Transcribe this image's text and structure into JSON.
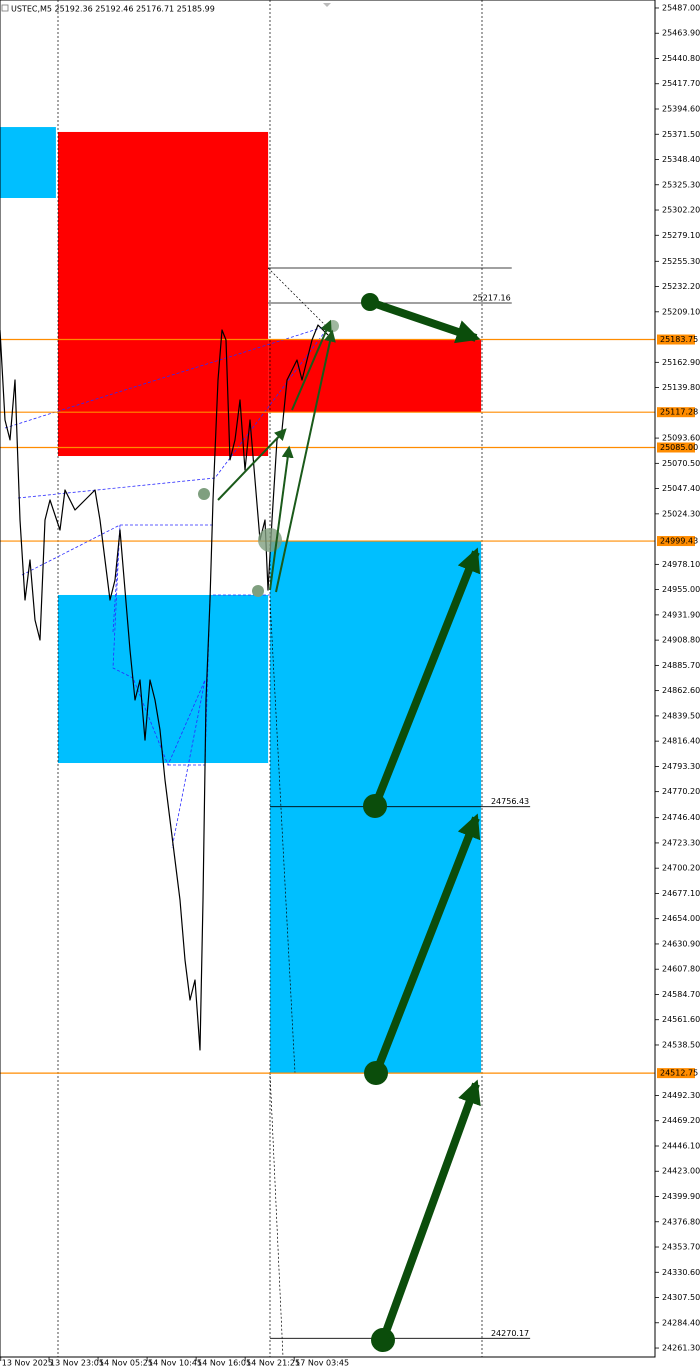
{
  "chart_data": {
    "type": "line",
    "title": "USTEC,M5  25192.36 25192.46 25176.71 25185.99",
    "color": "#000000",
    "x": [
      0,
      6.5,
      13.1,
      19.6,
      26.1,
      32.6,
      39.2,
      45.7,
      52.2,
      58.7,
      65.3,
      78.3,
      84.8,
      97.9,
      111.0,
      124.0,
      130.5,
      137.1,
      143.6,
      150.1,
      156.6,
      163.2,
      169.7,
      176.2,
      182.7,
      189.3,
      195.8,
      202.3,
      208.8,
      215.4,
      221.9,
      228.4,
      235.0,
      241.5,
      248.0,
      254.5,
      261.1,
      265.0,
      268.9,
      274.1,
      278.0,
      284.6,
      289.8,
      295.0,
      300.2,
      306.7,
      313.3,
      319.8,
      326.3,
      332.9,
      339.4,
      345.9,
      349.8,
      355.0,
      361.6,
      368.1,
      374.6,
      381.1,
      387.7,
      394.2,
      400.7,
      407.3,
      415.1,
      421.6,
      428.1
    ],
    "values": [
      25192.5,
      25110.1,
      25091.9,
      25146.7,
      25018.7,
      24945.5,
      24982.1,
      24927.2,
      24908.9,
      25018.7,
      25037.0,
      25009.5,
      25046.1,
      25027.8,
      25037.0,
      25046.1,
      25018.7,
      24982.1,
      24945.5,
      24963.8,
      25009.5,
      24954.6,
      24899.8,
      24854.0,
      24872.3,
      24817.4,
      24872.3,
      24854.0,
      24826.6,
      24780.9,
      24744.3,
      24707.7,
      24671.1,
      24616.2,
      24579.6,
      24597.9,
      24533.9,
      24671.1,
      24854.0,
      24945.5,
      25037.0,
      25146.7,
      25192.5,
      25183.3,
      25073.6,
      25091.9,
      25128.4,
      25064.4,
      25110.1,
      25055.3,
      25000.4,
      25018.7,
      24954.6,
      25018.7,
      25091.9,
      25101.0,
      25146.7,
      25155.9,
      25165.0,
      25146.7,
      25165.0,
      25183.3,
      25197.0,
      25192.5,
      25187.9
    ],
    "xlim": [
      0,
      855
    ],
    "xticks": [
      {
        "value": 1,
        "label": "13 Nov 2025"
      },
      {
        "value": 64,
        "label": "13 Nov 23:05"
      },
      {
        "value": 128,
        "label": "14 Nov 05:25"
      },
      {
        "value": 192,
        "label": "14 Nov 10:45"
      },
      {
        "value": 256,
        "label": "14 Nov 16:05"
      },
      {
        "value": 320,
        "label": "14 Nov 21:25"
      },
      {
        "value": 384,
        "label": "17 Nov 03:45"
      }
    ],
    "ylim": [
      24253.1,
      25494.3
    ],
    "yticks": [
      {
        "value": 25487,
        "label": "25487.00"
      },
      {
        "value": 25463.9,
        "label": "25463.90"
      },
      {
        "value": 25440.8,
        "label": "25440.80"
      },
      {
        "value": 25417.7,
        "label": "25417.70"
      },
      {
        "value": 25394.6,
        "label": "25394.60"
      },
      {
        "value": 25371.5,
        "label": "25371.50"
      },
      {
        "value": 25348.4,
        "label": "25348.40"
      },
      {
        "value": 25325.3,
        "label": "25325.30"
      },
      {
        "value": 25302.2,
        "label": "25302.20"
      },
      {
        "value": 25279.1,
        "label": "25279.10"
      },
      {
        "value": 25255.3,
        "label": "25255.30"
      },
      {
        "value": 25232.2,
        "label": "25232.20"
      },
      {
        "value": 25209.1,
        "label": "25209.10"
      },
      {
        "value": 25162.9,
        "label": "25162.90"
      },
      {
        "value": 25139.8,
        "label": "25139.80"
      },
      {
        "value": 25093.6,
        "label": "25093.60"
      },
      {
        "value": 25070.5,
        "label": "25070.50"
      },
      {
        "value": 25047.4,
        "label": "25047.40"
      },
      {
        "value": 25024.3,
        "label": "25024.30"
      },
      {
        "value": 24978.1,
        "label": "24978.10"
      },
      {
        "value": 24955,
        "label": "24955.00"
      },
      {
        "value": 24931.9,
        "label": "24931.90"
      },
      {
        "value": 24908.8,
        "label": "24908.80"
      },
      {
        "value": 24885.7,
        "label": "24885.70"
      },
      {
        "value": 24862.6,
        "label": "24862.60"
      },
      {
        "value": 24839.5,
        "label": "24839.50"
      },
      {
        "value": 24816.4,
        "label": "24816.40"
      },
      {
        "value": 24793.3,
        "label": "24793.30"
      },
      {
        "value": 24770.2,
        "label": "24770.20"
      },
      {
        "value": 24746.4,
        "label": "24746.40"
      },
      {
        "value": 24723.3,
        "label": "24723.30"
      },
      {
        "value": 24700.2,
        "label": "24700.20"
      },
      {
        "value": 24677.1,
        "label": "24677.10"
      },
      {
        "value": 24654,
        "label": "24654.00"
      },
      {
        "value": 24630.9,
        "label": "24630.90"
      },
      {
        "value": 24607.8,
        "label": "24607.80"
      },
      {
        "value": 24584.7,
        "label": "24584.70"
      },
      {
        "value": 24561.6,
        "label": "24561.60"
      },
      {
        "value": 24538.5,
        "label": "24538.50"
      },
      {
        "value": 24492.3,
        "label": "24492.30"
      },
      {
        "value": 24469.2,
        "label": "24469.20"
      },
      {
        "value": 24446.1,
        "label": "24446.10"
      },
      {
        "value": 24423,
        "label": "24423.00"
      },
      {
        "value": 24399.9,
        "label": "24399.90"
      },
      {
        "value": 24376.8,
        "label": "24376.80"
      },
      {
        "value": 24353.7,
        "label": "24353.70"
      },
      {
        "value": 24330.6,
        "label": "24330.60"
      },
      {
        "value": 24307.5,
        "label": "24307.50"
      },
      {
        "value": 24284.4,
        "label": "24284.40"
      },
      {
        "value": 24261.3,
        "label": "24261.30"
      }
    ],
    "zones": [
      {
        "color": "#00bfff",
        "x": [
          0,
          73
        ],
        "y": [
          25313.2,
          25378.1
        ]
      },
      {
        "color": "#ff0000",
        "x": [
          75.7,
          350
        ],
        "y": [
          25077.2,
          25373.6
        ]
      },
      {
        "color": "#ff0000",
        "x": [
          350,
          628
        ],
        "y": [
          25117.28,
          25183.75
        ]
      },
      {
        "color": "#00bfff",
        "x": [
          75.7,
          350
        ],
        "y": [
          24796.4,
          24950.1
        ]
      },
      {
        "color": "#00bfff",
        "x": [
          352.5,
          628
        ],
        "y": [
          24512.75,
          24999.43
        ]
      }
    ],
    "levels": [
      {
        "price": 25183.75,
        "color": "#ff8c00",
        "axis": true
      },
      {
        "price": 25117.28,
        "color": "#ff8c00",
        "axis": true
      },
      {
        "price": 25085,
        "label": "25085.00",
        "color": "#ff8c00",
        "axis": true
      },
      {
        "price": 24999.43,
        "color": "#ff8c00",
        "axis": true
      },
      {
        "price": 24512.75,
        "color": "#ff8c00",
        "axis": true
      },
      {
        "price": 25249.2,
        "color": "#000000",
        "x": [
          350,
          668
        ]
      },
      {
        "price": 25217.16,
        "color": "#000000",
        "x": [
          350,
          668
        ]
      },
      {
        "price": 24756.43,
        "color": "#000000",
        "x": [
          352.5,
          692
        ]
      },
      {
        "price": 24270.17,
        "color": "#000000",
        "x": [
          352.5,
          692
        ]
      }
    ]
  }
}
